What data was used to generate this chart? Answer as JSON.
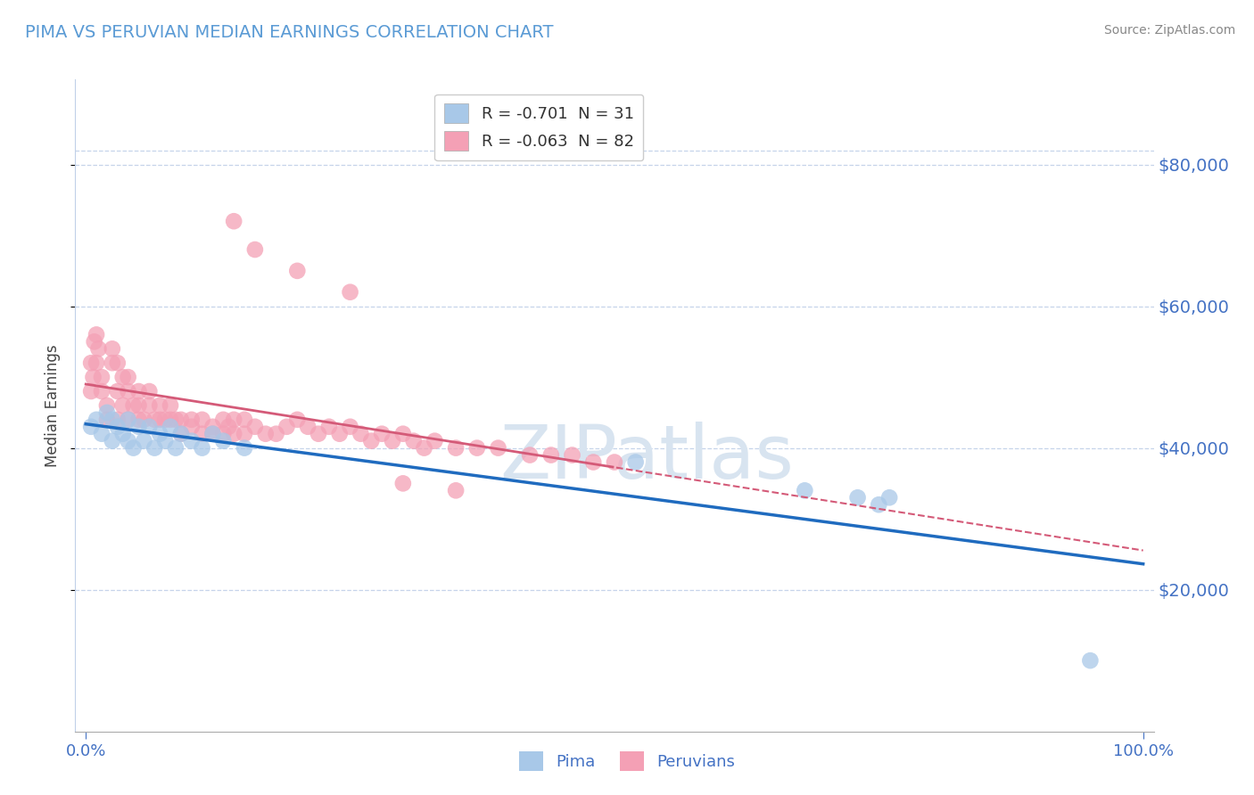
{
  "title": "PIMA VS PERUVIAN MEDIAN EARNINGS CORRELATION CHART",
  "source": "Source: ZipAtlas.com",
  "ylabel": "Median Earnings",
  "xlim": [
    -0.01,
    1.01
  ],
  "ylim": [
    0,
    92000
  ],
  "yticks": [
    20000,
    40000,
    60000,
    80000
  ],
  "ytick_labels": [
    "$20,000",
    "$40,000",
    "$60,000",
    "$80,000"
  ],
  "xtick_labels": [
    "0.0%",
    "100.0%"
  ],
  "legend_text": [
    "R = -0.701  N = 31",
    "R = -0.063  N = 82"
  ],
  "pima_color": "#a8c8e8",
  "peruvian_color": "#f4a0b5",
  "pima_line_color": "#1f6bbf",
  "peruvian_line_color": "#d45a78",
  "title_color": "#5b9bd5",
  "axis_color": "#4472c4",
  "grid_color": "#c0d0e8",
  "source_color": "#888888",
  "ylabel_color": "#444444",
  "watermark_color": "#d8e4f0",
  "pima_x": [
    0.005,
    0.01,
    0.015,
    0.02,
    0.025,
    0.025,
    0.03,
    0.035,
    0.04,
    0.04,
    0.045,
    0.05,
    0.055,
    0.06,
    0.065,
    0.07,
    0.075,
    0.08,
    0.085,
    0.09,
    0.1,
    0.11,
    0.12,
    0.13,
    0.15,
    0.52,
    0.68,
    0.73,
    0.75,
    0.76,
    0.95
  ],
  "pima_y": [
    43000,
    44000,
    42000,
    45000,
    41000,
    44000,
    43000,
    42000,
    41000,
    44000,
    40000,
    43000,
    41000,
    43000,
    40000,
    42000,
    41000,
    43000,
    40000,
    42000,
    41000,
    40000,
    42000,
    41000,
    40000,
    38000,
    34000,
    33000,
    32000,
    33000,
    10000
  ],
  "peruvian_x": [
    0.005,
    0.005,
    0.007,
    0.008,
    0.01,
    0.01,
    0.012,
    0.015,
    0.015,
    0.02,
    0.02,
    0.025,
    0.025,
    0.03,
    0.03,
    0.03,
    0.035,
    0.035,
    0.04,
    0.04,
    0.04,
    0.045,
    0.05,
    0.05,
    0.05,
    0.055,
    0.06,
    0.06,
    0.065,
    0.07,
    0.07,
    0.075,
    0.08,
    0.08,
    0.085,
    0.09,
    0.09,
    0.1,
    0.1,
    0.11,
    0.11,
    0.12,
    0.12,
    0.13,
    0.13,
    0.135,
    0.14,
    0.14,
    0.15,
    0.15,
    0.16,
    0.17,
    0.18,
    0.19,
    0.2,
    0.21,
    0.22,
    0.23,
    0.24,
    0.25,
    0.26,
    0.27,
    0.28,
    0.29,
    0.3,
    0.31,
    0.32,
    0.33,
    0.35,
    0.37,
    0.39,
    0.42,
    0.44,
    0.46,
    0.48,
    0.5,
    0.2,
    0.25,
    0.14,
    0.16,
    0.3,
    0.35
  ],
  "peruvian_y": [
    48000,
    52000,
    50000,
    55000,
    52000,
    56000,
    54000,
    48000,
    50000,
    44000,
    46000,
    52000,
    54000,
    44000,
    48000,
    52000,
    46000,
    50000,
    44000,
    48000,
    50000,
    46000,
    44000,
    46000,
    48000,
    44000,
    46000,
    48000,
    44000,
    44000,
    46000,
    44000,
    44000,
    46000,
    44000,
    44000,
    42000,
    43000,
    44000,
    42000,
    44000,
    43000,
    42000,
    42000,
    44000,
    43000,
    42000,
    44000,
    42000,
    44000,
    43000,
    42000,
    42000,
    43000,
    44000,
    43000,
    42000,
    43000,
    42000,
    43000,
    42000,
    41000,
    42000,
    41000,
    42000,
    41000,
    40000,
    41000,
    40000,
    40000,
    40000,
    39000,
    39000,
    39000,
    38000,
    38000,
    65000,
    62000,
    72000,
    68000,
    35000,
    34000
  ]
}
